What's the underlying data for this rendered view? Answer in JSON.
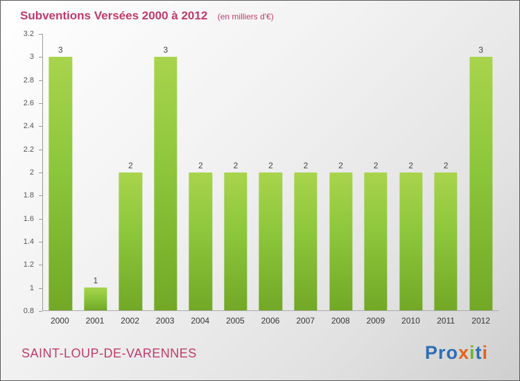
{
  "chart_data": {
    "type": "bar",
    "title": "Subventions Versées 2000 à 2012",
    "subtitle": "(en milliers d'€)",
    "categories": [
      "2000",
      "2001",
      "2002",
      "2003",
      "2004",
      "2005",
      "2006",
      "2007",
      "2008",
      "2009",
      "2010",
      "2011",
      "2012"
    ],
    "values": [
      3,
      1,
      2,
      3,
      2,
      2,
      2,
      2,
      2,
      2,
      2,
      2,
      3
    ],
    "xlabel": "",
    "ylabel": "",
    "ylim": [
      0.8,
      3.2
    ],
    "y_ticks": [
      "3.2",
      "3",
      "2.8",
      "2.6",
      "2.4",
      "2.2",
      "2",
      "1.8",
      "1.6",
      "1.4",
      "1.2",
      "1",
      "0.8"
    ],
    "grid": false,
    "legend": false,
    "bar_color_top": "#a8d44c",
    "bar_color_bottom": "#72a826"
  },
  "colors": {
    "title_text": "#c03a6b",
    "commune_text": "#c03a6b",
    "background_start": "#ffffff",
    "background_end": "#cfcfcf"
  },
  "footer": {
    "commune": "SAINT-LOUP-DE-VARENNES",
    "logo_letters": [
      {
        "ch": "P",
        "color": "#2e6db4"
      },
      {
        "ch": "r",
        "color": "#2e6db4"
      },
      {
        "ch": "o",
        "color": "#2e6db4"
      },
      {
        "ch": "x",
        "color": "#e8611c"
      },
      {
        "ch": "i",
        "color": "#6fb52c"
      },
      {
        "ch": "t",
        "color": "#2e6db4"
      },
      {
        "ch": "i",
        "color": "#e8611c"
      }
    ]
  }
}
